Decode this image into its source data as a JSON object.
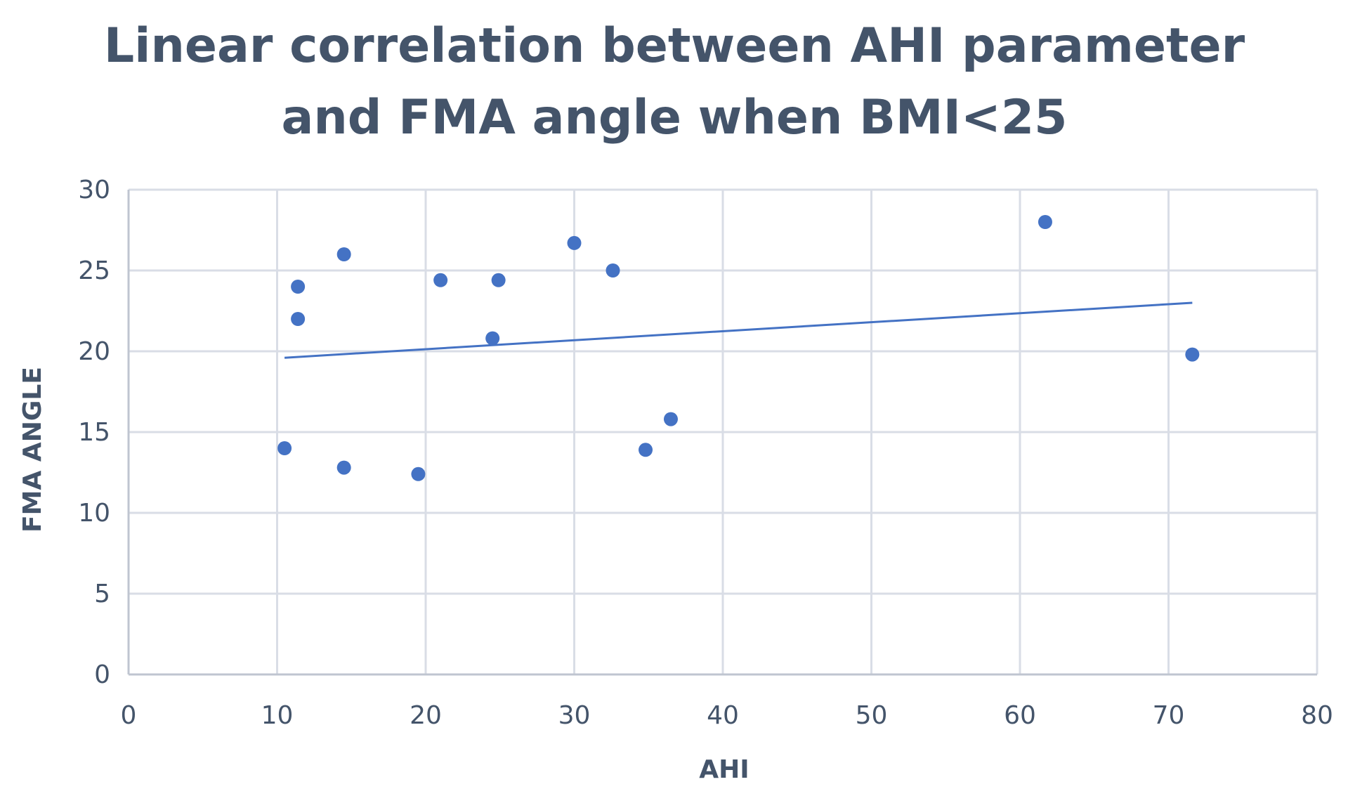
{
  "chart_data": {
    "type": "scatter",
    "title": "Linear correlation between AHI parameter and FMA angle when BMI<25",
    "title_lines": [
      "Linear correlation between AHI parameter",
      "and FMA angle when BMI<25"
    ],
    "xlabel": "AHI",
    "ylabel": "FMA ANGLE",
    "xlim": [
      0,
      80
    ],
    "ylim": [
      0,
      30
    ],
    "x_ticks": [
      0,
      10,
      20,
      30,
      40,
      50,
      60,
      70,
      80
    ],
    "y_ticks": [
      0,
      5,
      10,
      15,
      20,
      25,
      30
    ],
    "grid": true,
    "series": [
      {
        "name": "FMA angle",
        "color": "#4472c4",
        "points": [
          {
            "x": 10.5,
            "y": 14.0
          },
          {
            "x": 11.4,
            "y": 24.0
          },
          {
            "x": 11.4,
            "y": 22.0
          },
          {
            "x": 14.5,
            "y": 26.0
          },
          {
            "x": 14.5,
            "y": 12.8
          },
          {
            "x": 19.5,
            "y": 12.4
          },
          {
            "x": 21.0,
            "y": 24.4
          },
          {
            "x": 24.5,
            "y": 20.8
          },
          {
            "x": 24.9,
            "y": 24.4
          },
          {
            "x": 30.0,
            "y": 26.7
          },
          {
            "x": 32.6,
            "y": 25.0
          },
          {
            "x": 34.8,
            "y": 13.9
          },
          {
            "x": 36.5,
            "y": 15.8
          },
          {
            "x": 61.7,
            "y": 28.0
          },
          {
            "x": 71.6,
            "y": 19.8
          }
        ]
      }
    ],
    "trendline": {
      "type": "linear",
      "color": "#4472c4",
      "x": [
        10.5,
        71.6
      ],
      "y": [
        19.6,
        23.0
      ]
    }
  }
}
